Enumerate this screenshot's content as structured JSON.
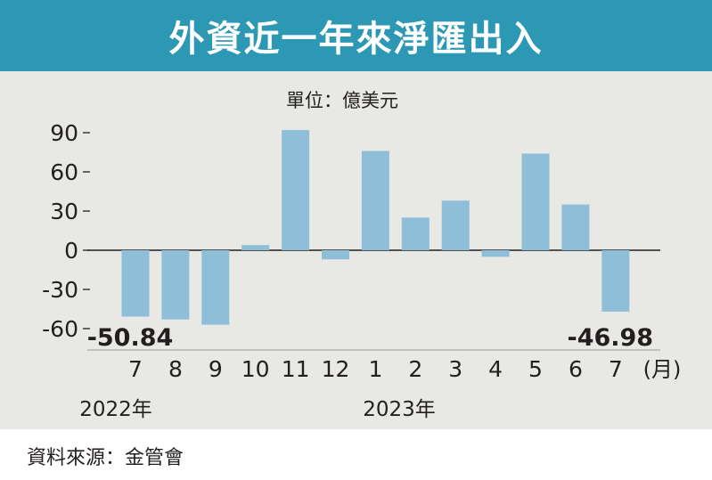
{
  "header": {
    "title": "外資近一年來淨匯出入"
  },
  "unit_label": "單位：億美元",
  "month_unit": "(月)",
  "year_labels": [
    "2022年",
    "2023年"
  ],
  "source": "資料來源：金管會",
  "colors": {
    "header": "#2d98b4",
    "bar": "#8fbfd8",
    "background": "#e8e8e4"
  },
  "chart_data": {
    "type": "bar",
    "categories": [
      "7",
      "8",
      "9",
      "10",
      "11",
      "12",
      "1",
      "2",
      "3",
      "4",
      "5",
      "6",
      "7"
    ],
    "values": [
      -50.84,
      -53,
      -57,
      4,
      92,
      -7,
      76,
      25,
      38,
      -5,
      74,
      35,
      -46.98
    ],
    "data_labels": [
      {
        "index": 0,
        "text": "-50.84"
      },
      {
        "index": 12,
        "text": "-46.98"
      }
    ],
    "yticks": [
      90,
      60,
      30,
      0,
      -30,
      -60
    ],
    "ylim": [
      -70,
      100
    ],
    "title": "外資近一年來淨匯出入",
    "ylabel": "單位：億美元",
    "xlabel": "(月)"
  }
}
